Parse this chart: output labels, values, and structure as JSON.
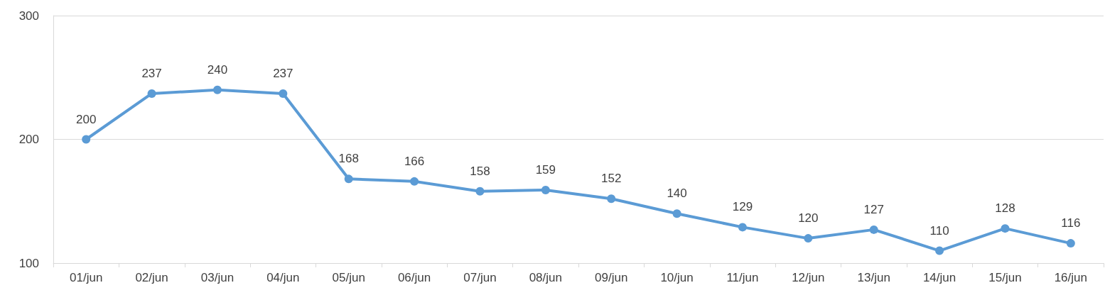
{
  "chart_data": {
    "type": "line",
    "categories": [
      "01/jun",
      "02/jun",
      "03/jun",
      "04/jun",
      "05/jun",
      "06/jun",
      "07/jun",
      "08/jun",
      "09/jun",
      "10/jun",
      "11/jun",
      "12/jun",
      "13/jun",
      "14/jun",
      "15/jun",
      "16/jun"
    ],
    "series": [
      {
        "color": "#5b9bd5",
        "values": [
          200,
          237,
          240,
          237,
          168,
          166,
          158,
          159,
          152,
          140,
          129,
          120,
          127,
          110,
          128,
          116
        ]
      }
    ],
    "ylim": [
      100,
      300
    ],
    "yticks": [
      100,
      200,
      300
    ],
    "grid": "y",
    "marker": "circle",
    "line_style": "solid",
    "data_labels": true
  }
}
